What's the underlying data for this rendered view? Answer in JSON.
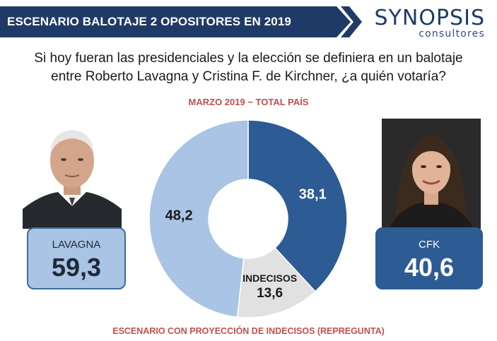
{
  "header": {
    "title": "ESCENARIO BALOTAJE 2 OPOSITORES EN 2019",
    "logo_main": "SYNOPSIS",
    "logo_sub": "consultores"
  },
  "question": {
    "line1": "Si hoy fueran las presidenciales y la elección se definiera en un balotaje",
    "line2": "entre Roberto Lavagna y Cristina F. de Kirchner, ¿a quién votaría?"
  },
  "period": "MARZO 2019 − TOTAL PAÍS",
  "footnote": "ESCENARIO CON PROYECCIÓN DE INDECISOS (REPREGUNTA)",
  "cards": {
    "left": {
      "name": "LAVAGNA",
      "value": "59,3"
    },
    "right": {
      "name": "CFK",
      "value": "40,6"
    }
  },
  "chart_data": {
    "type": "pie",
    "donut": true,
    "slices": [
      {
        "label": "",
        "value": 38.1,
        "display": "38,1",
        "color": "#2d5b93"
      },
      {
        "label": "INDECISOS",
        "value": 13.6,
        "display": "13,6",
        "color": "#e1e1e1"
      },
      {
        "label": "",
        "value": 48.2,
        "display": "48,2",
        "color": "#a9c4e4"
      }
    ]
  },
  "colors": {
    "banner": "#1f3a66",
    "accent_red": "#c0504d",
    "dark_blue": "#2d5b93",
    "light_blue": "#a9c4e4"
  }
}
